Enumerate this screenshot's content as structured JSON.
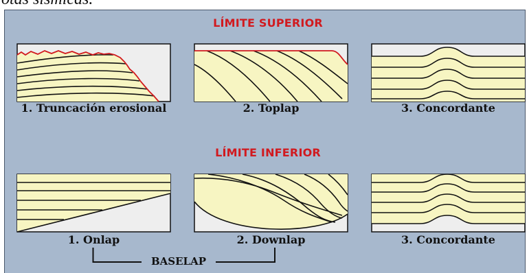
{
  "caption_fragment": "otas sísmicas.",
  "colors": {
    "panel_background": "#a7b8cd",
    "layer_fill": "#f7f5c2",
    "diagram_background": "#eeeeee",
    "boundary_line": "#d11a1f",
    "title_color": "#d11a1f"
  },
  "upper": {
    "title": "LÍMITE SUPERIOR",
    "diagrams": [
      {
        "label": "1. Truncación erosional"
      },
      {
        "label": "2. Toplap"
      },
      {
        "label": "3. Concordante"
      }
    ]
  },
  "lower": {
    "title": "LÍMITE INFERIOR",
    "diagrams": [
      {
        "label": "1. Onlap"
      },
      {
        "label": "2. Downlap"
      },
      {
        "label": "3. Concordante"
      }
    ]
  },
  "baselap": {
    "label": "BASELAP"
  }
}
